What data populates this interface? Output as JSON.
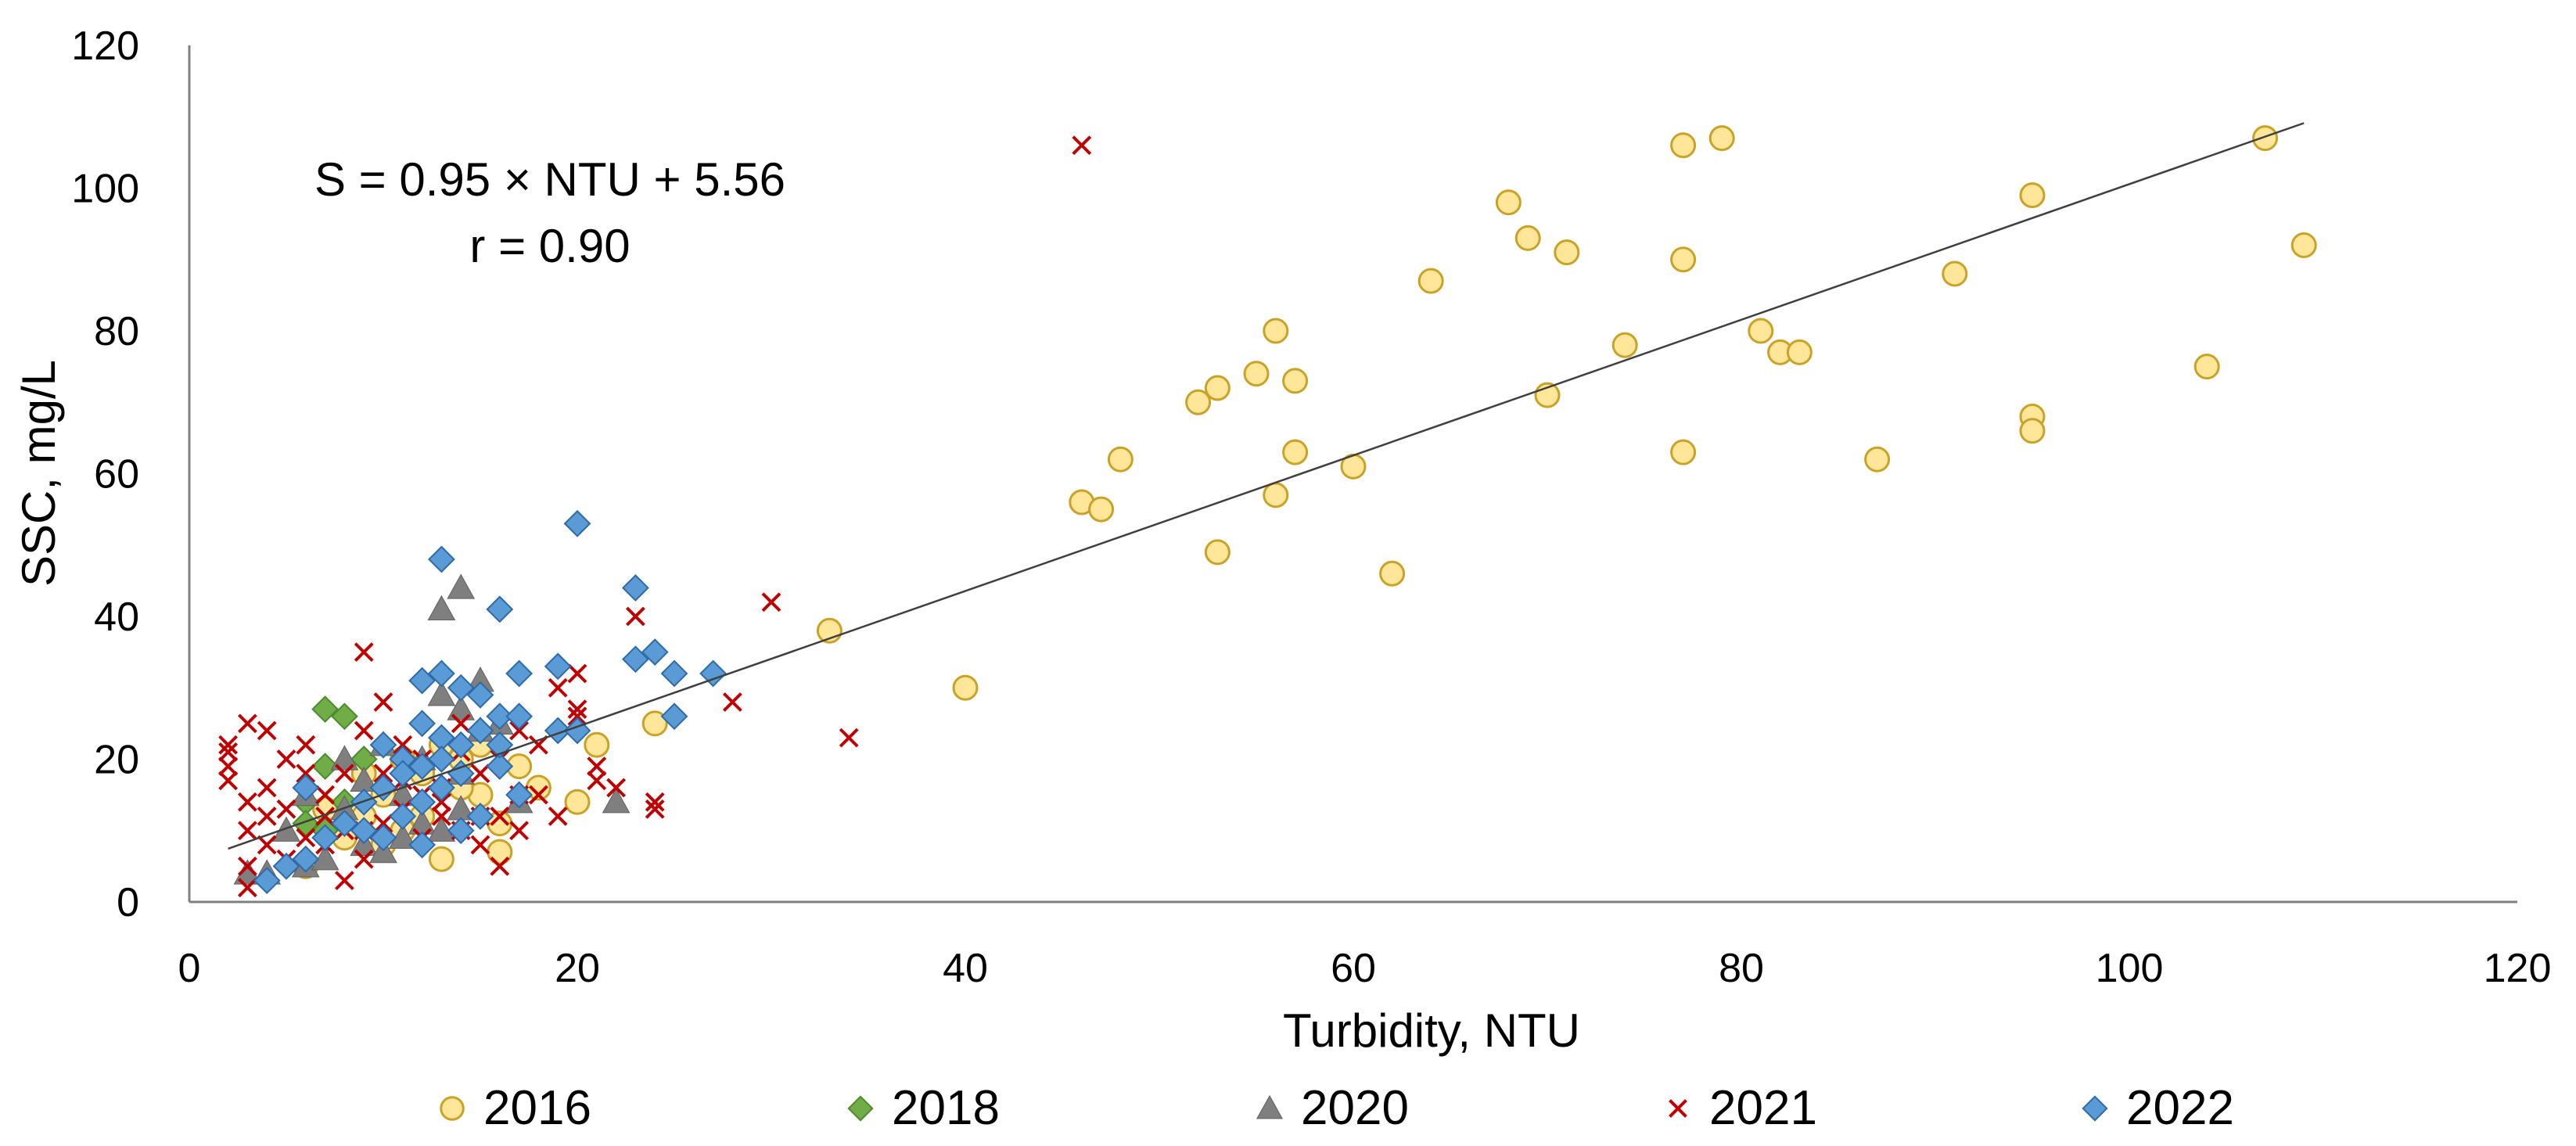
{
  "chart_data": {
    "type": "scatter",
    "title": "",
    "xlabel": "Turbidity, NTU",
    "ylabel": "SSC, mg/L",
    "xlim": [
      0,
      120
    ],
    "ylim": [
      0,
      120
    ],
    "xticks": [
      0,
      20,
      40,
      60,
      80,
      100,
      120
    ],
    "yticks": [
      0,
      20,
      40,
      60,
      80,
      100,
      120
    ],
    "grid": false,
    "legend_position": "bottom",
    "annotations": {
      "equation": "S = 0.95 × NTU + 5.56",
      "r": "r = 0.90"
    },
    "trendline": {
      "slope": 0.95,
      "intercept": 5.56,
      "x_range": [
        2,
        109
      ]
    },
    "colors": {
      "2016": "#FFE699",
      "2016_stroke": "#C9A227",
      "2018": "#70AD47",
      "2020": "#7F7F7F",
      "2021": "#C00000",
      "2022": "#5B9BD5",
      "2022_stroke": "#2E6BA8",
      "trendline": "#404040",
      "axis": "#808080"
    },
    "series": [
      {
        "name": "2016",
        "marker": "circle",
        "points": [
          [
            33,
            38
          ],
          [
            40,
            30
          ],
          [
            46,
            56
          ],
          [
            47,
            55
          ],
          [
            48,
            62
          ],
          [
            52,
            70
          ],
          [
            53,
            72
          ],
          [
            53,
            49
          ],
          [
            55,
            74
          ],
          [
            56,
            80
          ],
          [
            57,
            73
          ],
          [
            57,
            63
          ],
          [
            56,
            57
          ],
          [
            60,
            61
          ],
          [
            62,
            46
          ],
          [
            64,
            87
          ],
          [
            68,
            98
          ],
          [
            69,
            93
          ],
          [
            71,
            91
          ],
          [
            70,
            71
          ],
          [
            74,
            78
          ],
          [
            77,
            106
          ],
          [
            77,
            90
          ],
          [
            77,
            63
          ],
          [
            79,
            107
          ],
          [
            81,
            80
          ],
          [
            82,
            77
          ],
          [
            83,
            77
          ],
          [
            87,
            62
          ],
          [
            91,
            88
          ],
          [
            95,
            99
          ],
          [
            95,
            68
          ],
          [
            95,
            66
          ],
          [
            104,
            75
          ],
          [
            107,
            107
          ],
          [
            109,
            92
          ],
          [
            21,
            22
          ],
          [
            24,
            25
          ],
          [
            20,
            14
          ],
          [
            13,
            6
          ],
          [
            16,
            7
          ],
          [
            9,
            12
          ],
          [
            10,
            15
          ],
          [
            11,
            10
          ],
          [
            12,
            18
          ],
          [
            14,
            20
          ],
          [
            15,
            15
          ],
          [
            16,
            11
          ],
          [
            17,
            19
          ],
          [
            8,
            9
          ],
          [
            7,
            13
          ],
          [
            6,
            5
          ],
          [
            9,
            18
          ],
          [
            10,
            8
          ],
          [
            13,
            22
          ],
          [
            14,
            16
          ],
          [
            18,
            16
          ],
          [
            12,
            12
          ],
          [
            11,
            20
          ],
          [
            15,
            22
          ]
        ]
      },
      {
        "name": "2018",
        "marker": "diamond",
        "points": [
          [
            7,
            27
          ],
          [
            8,
            26
          ],
          [
            7,
            19
          ],
          [
            6,
            14
          ],
          [
            6,
            11
          ],
          [
            8,
            14
          ],
          [
            9,
            20
          ],
          [
            7,
            10
          ]
        ]
      },
      {
        "name": "2020",
        "marker": "triangle",
        "points": [
          [
            14,
            44
          ],
          [
            13,
            41
          ],
          [
            15,
            31
          ],
          [
            13,
            29
          ],
          [
            14,
            27
          ],
          [
            4,
            4
          ],
          [
            5,
            10
          ],
          [
            6,
            5
          ],
          [
            7,
            6
          ],
          [
            8,
            20
          ],
          [
            9,
            8
          ],
          [
            10,
            7
          ],
          [
            11,
            15
          ],
          [
            12,
            11
          ],
          [
            13,
            10
          ],
          [
            14,
            18
          ],
          [
            15,
            24
          ],
          [
            16,
            25
          ],
          [
            17,
            14
          ],
          [
            22,
            14
          ],
          [
            10,
            22
          ],
          [
            6,
            15
          ],
          [
            11,
            9
          ],
          [
            12,
            20
          ],
          [
            3,
            4
          ],
          [
            8,
            13
          ],
          [
            9,
            17
          ],
          [
            14,
            13
          ]
        ]
      },
      {
        "name": "2021",
        "marker": "x",
        "points": [
          [
            46,
            106
          ],
          [
            30,
            42
          ],
          [
            34,
            23
          ],
          [
            28,
            28
          ],
          [
            23,
            40
          ],
          [
            24,
            14
          ],
          [
            24,
            13
          ],
          [
            20,
            32
          ],
          [
            20,
            26
          ],
          [
            21,
            19
          ],
          [
            22,
            16
          ],
          [
            19,
            12
          ],
          [
            20,
            27
          ],
          [
            19,
            30
          ],
          [
            21,
            17
          ],
          [
            18,
            15
          ],
          [
            17,
            24
          ],
          [
            16,
            5
          ],
          [
            16,
            12
          ],
          [
            15,
            18
          ],
          [
            14,
            10
          ],
          [
            13,
            14
          ],
          [
            12,
            20
          ],
          [
            11,
            22
          ],
          [
            10,
            28
          ],
          [
            9,
            35
          ],
          [
            9,
            24
          ],
          [
            8,
            18
          ],
          [
            8,
            10
          ],
          [
            7,
            12
          ],
          [
            6,
            22
          ],
          [
            5,
            20
          ],
          [
            4,
            24
          ],
          [
            3,
            25
          ],
          [
            2,
            22
          ],
          [
            2,
            19
          ],
          [
            2,
            17
          ],
          [
            3,
            14
          ],
          [
            4,
            12
          ],
          [
            3,
            10
          ],
          [
            3,
            5
          ],
          [
            3,
            2
          ],
          [
            4,
            8
          ],
          [
            5,
            6
          ],
          [
            6,
            9
          ],
          [
            7,
            15
          ],
          [
            8,
            3
          ],
          [
            9,
            6
          ],
          [
            10,
            11
          ],
          [
            11,
            13
          ],
          [
            12,
            9
          ],
          [
            13,
            16
          ],
          [
            14,
            21
          ],
          [
            15,
            12
          ],
          [
            16,
            20
          ],
          [
            17,
            10
          ],
          [
            18,
            22
          ],
          [
            10,
            18
          ],
          [
            12,
            15
          ],
          [
            7,
            8
          ],
          [
            5,
            13
          ],
          [
            11,
            17
          ],
          [
            13,
            12
          ],
          [
            15,
            8
          ],
          [
            9,
            10
          ],
          [
            6,
            18
          ],
          [
            4,
            16
          ],
          [
            2,
            21
          ],
          [
            14,
            25
          ],
          [
            17,
            15
          ]
        ]
      },
      {
        "name": "2022",
        "marker": "diamond",
        "points": [
          [
            20,
            53
          ],
          [
            13,
            48
          ],
          [
            23,
            44
          ],
          [
            16,
            41
          ],
          [
            24,
            35
          ],
          [
            23,
            34
          ],
          [
            19,
            33
          ],
          [
            17,
            32
          ],
          [
            13,
            32
          ],
          [
            12,
            31
          ],
          [
            25,
            32
          ],
          [
            27,
            32
          ],
          [
            25,
            26
          ],
          [
            15,
            29
          ],
          [
            14,
            30
          ],
          [
            16,
            26
          ],
          [
            17,
            26
          ],
          [
            15,
            24
          ],
          [
            12,
            25
          ],
          [
            19,
            24
          ],
          [
            20,
            24
          ],
          [
            14,
            22
          ],
          [
            13,
            23
          ],
          [
            11,
            20
          ],
          [
            12,
            19
          ],
          [
            14,
            18
          ],
          [
            13,
            16
          ],
          [
            12,
            14
          ],
          [
            11,
            12
          ],
          [
            10,
            16
          ],
          [
            9,
            10
          ],
          [
            8,
            11
          ],
          [
            7,
            9
          ],
          [
            6,
            6
          ],
          [
            5,
            5
          ],
          [
            4,
            3
          ],
          [
            6,
            16
          ],
          [
            16,
            19
          ],
          [
            17,
            15
          ],
          [
            15,
            12
          ],
          [
            14,
            10
          ],
          [
            12,
            8
          ],
          [
            10,
            9
          ],
          [
            9,
            14
          ],
          [
            10,
            22
          ],
          [
            11,
            18
          ],
          [
            13,
            20
          ],
          [
            16,
            22
          ]
        ]
      }
    ]
  }
}
